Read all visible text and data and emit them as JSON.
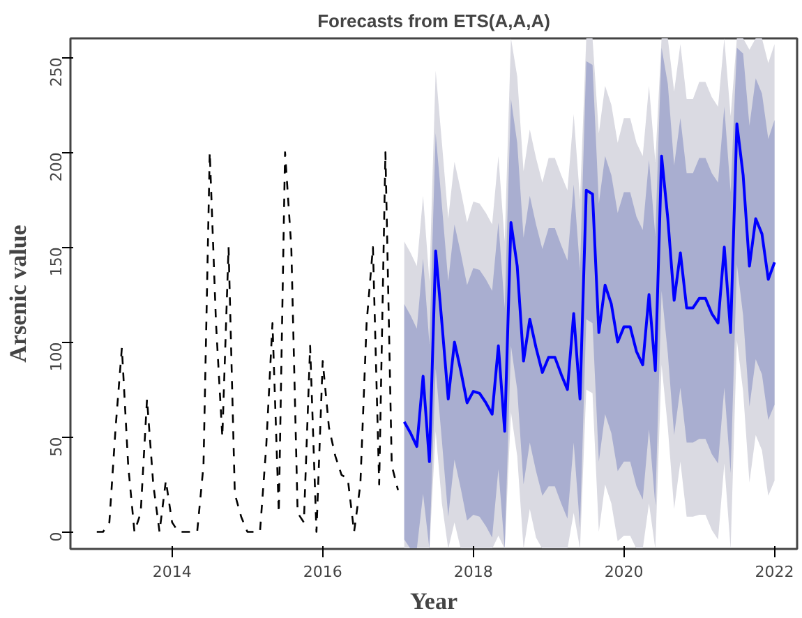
{
  "chart_data": {
    "type": "line",
    "title": "Forecasts from ETS(A,A,A)",
    "xlabel": "Year",
    "ylabel": "Arsenic value",
    "xlim": [
      2012.65,
      2022.3
    ],
    "ylim": [
      -9,
      260
    ],
    "xticks": [
      2014,
      2016,
      2018,
      2020,
      2022
    ],
    "yticks": [
      0,
      50,
      100,
      150,
      200,
      250
    ],
    "grid": false,
    "marker": "none",
    "series": [
      {
        "color": "#dadae2",
        "x": [
          2017.083,
          2017.167,
          2017.25,
          2017.333,
          2017.417,
          2017.5,
          2017.583,
          2017.667,
          2017.75,
          2017.833,
          2017.917,
          2018.0,
          2018.083,
          2018.167,
          2018.25,
          2018.333,
          2018.417,
          2018.5,
          2018.583,
          2018.667,
          2018.75,
          2018.833,
          2018.917,
          2019.0,
          2019.083,
          2019.167,
          2019.25,
          2019.333,
          2019.417,
          2019.5,
          2019.583,
          2019.667,
          2019.75,
          2019.833,
          2019.917,
          2020.0,
          2020.083,
          2020.167,
          2020.25,
          2020.333,
          2020.417,
          2020.5,
          2020.583,
          2020.667,
          2020.75,
          2020.833,
          2020.917,
          2021.0,
          2021.083,
          2021.167,
          2021.25,
          2021.333,
          2021.417,
          2021.5,
          2021.583,
          2021.667,
          2021.75,
          2021.833,
          2021.917,
          2022.0
        ],
        "values": [
          null,
          null,
          null,
          null,
          null,
          null,
          null,
          null,
          null,
          null,
          null,
          null,
          null,
          null,
          null,
          null,
          null,
          null,
          null,
          null,
          null,
          null,
          null,
          null,
          null,
          null,
          null,
          null,
          null,
          null,
          null,
          null,
          null,
          null,
          null,
          null,
          null,
          null,
          null,
          null,
          null,
          null,
          null,
          null,
          null,
          null,
          null,
          null,
          null,
          null,
          null,
          null,
          null,
          null,
          null,
          null,
          null,
          null,
          null,
          null
        ],
        "upper": [
          153,
          147,
          140,
          177,
          132,
          243,
          205,
          165,
          195,
          180,
          163,
          174,
          173,
          168,
          162,
          198,
          153,
          260,
          240,
          190,
          212,
          197,
          184,
          197,
          197,
          188,
          180,
          220,
          175,
          260,
          260,
          210,
          235,
          225,
          205,
          218,
          218,
          205,
          198,
          235,
          195,
          260,
          260,
          232,
          257,
          228,
          228,
          237,
          237,
          229,
          224,
          260,
          219,
          260,
          260,
          254,
          260,
          260,
          247,
          257
        ],
        "lower": [
          -9,
          -9,
          -9,
          -9,
          -9,
          53,
          15,
          -9,
          5,
          -9,
          -9,
          -9,
          -9,
          -9,
          -9,
          -2,
          -9,
          63,
          40,
          -9,
          12,
          -3,
          -9,
          -9,
          -9,
          -9,
          -9,
          10,
          -9,
          75,
          73,
          0,
          25,
          15,
          -5,
          -2,
          -2,
          -9,
          -9,
          15,
          -9,
          88,
          55,
          12,
          37,
          8,
          8,
          9,
          9,
          1,
          -4,
          36,
          -9,
          101,
          74,
          26,
          51,
          43,
          19,
          27
        ]
      },
      {
        "color": "#a9aed0",
        "x": [
          2017.083,
          2017.167,
          2017.25,
          2017.333,
          2017.417,
          2017.5,
          2017.583,
          2017.667,
          2017.75,
          2017.833,
          2017.917,
          2018.0,
          2018.083,
          2018.167,
          2018.25,
          2018.333,
          2018.417,
          2018.5,
          2018.583,
          2018.667,
          2018.75,
          2018.833,
          2018.917,
          2019.0,
          2019.083,
          2019.167,
          2019.25,
          2019.333,
          2019.417,
          2019.5,
          2019.583,
          2019.667,
          2019.75,
          2019.833,
          2019.917,
          2020.0,
          2020.083,
          2020.167,
          2020.25,
          2020.333,
          2020.417,
          2020.5,
          2020.583,
          2020.667,
          2020.75,
          2020.833,
          2020.917,
          2021.0,
          2021.083,
          2021.167,
          2021.25,
          2021.333,
          2021.417,
          2021.5,
          2021.583,
          2021.667,
          2021.75,
          2021.833,
          2021.917,
          2022.0
        ],
        "values": [
          null,
          null,
          null,
          null,
          null,
          null,
          null,
          null,
          null,
          null,
          null,
          null,
          null,
          null,
          null,
          null,
          null,
          null,
          null,
          null,
          null,
          null,
          null,
          null,
          null,
          null,
          null,
          null,
          null,
          null,
          null,
          null,
          null,
          null,
          null,
          null,
          null,
          null,
          null,
          null,
          null,
          null,
          null,
          null,
          null,
          null,
          null,
          null,
          null,
          null,
          null,
          null,
          null,
          null,
          null,
          null,
          null,
          null,
          null,
          null
        ],
        "upper": [
          120,
          114,
          107,
          144,
          99,
          210,
          172,
          132,
          162,
          147,
          130,
          139,
          138,
          133,
          127,
          163,
          118,
          228,
          205,
          155,
          177,
          162,
          149,
          160,
          160,
          151,
          143,
          183,
          138,
          248,
          246,
          173,
          198,
          188,
          168,
          179,
          179,
          166,
          159,
          196,
          156,
          255,
          236,
          193,
          218,
          189,
          189,
          197,
          197,
          189,
          184,
          224,
          179,
          255,
          252,
          214,
          239,
          231,
          207,
          217
        ],
        "lower": [
          -4,
          -9,
          -9,
          20,
          -9,
          86,
          48,
          8,
          38,
          23,
          6,
          9,
          8,
          3,
          -3,
          33,
          -9,
          98,
          75,
          25,
          47,
          32,
          19,
          24,
          24,
          15,
          7,
          47,
          2,
          112,
          110,
          37,
          62,
          52,
          32,
          37,
          37,
          24,
          17,
          54,
          14,
          127,
          94,
          51,
          76,
          47,
          47,
          49,
          49,
          41,
          36,
          76,
          31,
          141,
          114,
          66,
          91,
          83,
          59,
          67
        ]
      },
      {
        "color": "#0000ff",
        "line_style": "solid",
        "x": [
          2017.083,
          2017.167,
          2017.25,
          2017.333,
          2017.417,
          2017.5,
          2017.583,
          2017.667,
          2017.75,
          2017.833,
          2017.917,
          2018.0,
          2018.083,
          2018.167,
          2018.25,
          2018.333,
          2018.417,
          2018.5,
          2018.583,
          2018.667,
          2018.75,
          2018.833,
          2018.917,
          2019.0,
          2019.083,
          2019.167,
          2019.25,
          2019.333,
          2019.417,
          2019.5,
          2019.583,
          2019.667,
          2019.75,
          2019.833,
          2019.917,
          2020.0,
          2020.083,
          2020.167,
          2020.25,
          2020.333,
          2020.417,
          2020.5,
          2020.583,
          2020.667,
          2020.75,
          2020.833,
          2020.917,
          2021.0,
          2021.083,
          2021.167,
          2021.25,
          2021.333,
          2021.417,
          2021.5,
          2021.583,
          2021.667,
          2021.75,
          2021.833,
          2021.917,
          2022.0
        ],
        "values": [
          58,
          52,
          45,
          82,
          37,
          148,
          110,
          70,
          100,
          85,
          68,
          74,
          73,
          68,
          62,
          98,
          53,
          163,
          140,
          90,
          112,
          97,
          84,
          92,
          92,
          83,
          75,
          115,
          70,
          180,
          178,
          105,
          130,
          120,
          100,
          108,
          108,
          95,
          88,
          125,
          85,
          198,
          165,
          122,
          147,
          118,
          118,
          123,
          123,
          115,
          110,
          150,
          105,
          215,
          188,
          140,
          165,
          157,
          133,
          142
        ]
      },
      {
        "color": "#000000",
        "line_style": "dashed",
        "x": [
          2013.0,
          2013.083,
          2013.167,
          2013.25,
          2013.333,
          2013.417,
          2013.5,
          2013.583,
          2013.667,
          2013.75,
          2013.833,
          2013.917,
          2014.0,
          2014.083,
          2014.167,
          2014.25,
          2014.333,
          2014.417,
          2014.5,
          2014.583,
          2014.667,
          2014.75,
          2014.833,
          2014.917,
          2015.0,
          2015.083,
          2015.167,
          2015.25,
          2015.333,
          2015.417,
          2015.5,
          2015.583,
          2015.667,
          2015.75,
          2015.833,
          2015.917,
          2016.0,
          2016.083,
          2016.167,
          2016.25,
          2016.333,
          2016.417,
          2016.5,
          2016.583,
          2016.667,
          2016.75,
          2016.833,
          2016.917,
          2017.0
        ],
        "values": [
          0,
          0,
          5,
          55,
          97,
          35,
          0,
          10,
          70,
          25,
          0,
          27,
          5,
          0,
          0,
          0,
          0,
          35,
          200,
          110,
          50,
          150,
          20,
          8,
          0,
          0,
          0,
          45,
          110,
          10,
          200,
          150,
          10,
          5,
          98,
          0,
          90,
          55,
          40,
          30,
          28,
          0,
          25,
          110,
          150,
          25,
          200,
          35,
          22
        ]
      }
    ]
  }
}
